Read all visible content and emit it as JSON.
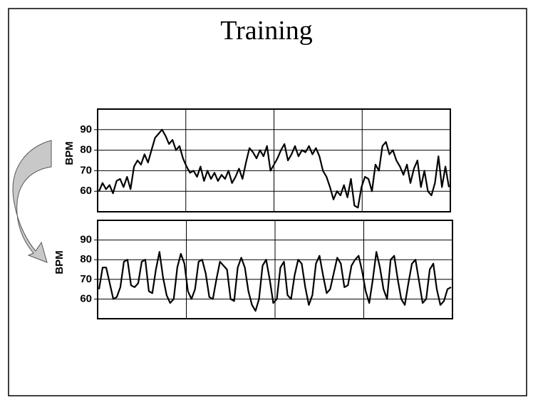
{
  "title": "Training",
  "chart_data": [
    {
      "type": "line",
      "ylabel": "BPM",
      "color": "#000000",
      "ylim": [
        50,
        100
      ],
      "yticks": [
        60,
        70,
        80,
        90
      ],
      "grid": true,
      "values": [
        60,
        64,
        61,
        63,
        59,
        65,
        66,
        62,
        67,
        61,
        72,
        75,
        73,
        78,
        74,
        80,
        86,
        88,
        90,
        87,
        83,
        85,
        80,
        82,
        76,
        72,
        69,
        70,
        67,
        72,
        65,
        70,
        66,
        69,
        65,
        68,
        66,
        70,
        64,
        67,
        71,
        66,
        74,
        81,
        79,
        76,
        80,
        77,
        82,
        70,
        73,
        76,
        80,
        83,
        75,
        78,
        82,
        77,
        80,
        79,
        82,
        78,
        81,
        77,
        70,
        67,
        62,
        56,
        60,
        58,
        63,
        57,
        66,
        53,
        52,
        62,
        67,
        66,
        60,
        73,
        70,
        82,
        84,
        78,
        80,
        75,
        72,
        68,
        73,
        64,
        71,
        75,
        62,
        70,
        60,
        58,
        64,
        77,
        62,
        72,
        62
      ]
    },
    {
      "type": "line",
      "ylabel": "BPM",
      "color": "#000000",
      "ylim": [
        50,
        100
      ],
      "yticks": [
        60,
        70,
        80,
        90
      ],
      "grid": true,
      "values": [
        65,
        76,
        76,
        68,
        60,
        61,
        66,
        79,
        80,
        67,
        66,
        68,
        79,
        80,
        64,
        63,
        75,
        84,
        71,
        62,
        58,
        60,
        76,
        83,
        78,
        64,
        60,
        65,
        79,
        80,
        73,
        61,
        60,
        70,
        79,
        77,
        75,
        60,
        59,
        76,
        81,
        76,
        64,
        57,
        54,
        60,
        77,
        80,
        70,
        58,
        60,
        76,
        79,
        62,
        60,
        72,
        80,
        78,
        66,
        57,
        62,
        78,
        82,
        72,
        63,
        65,
        73,
        81,
        78,
        66,
        67,
        77,
        80,
        82,
        74,
        64,
        58,
        70,
        84,
        76,
        65,
        60,
        80,
        82,
        70,
        60,
        57,
        68,
        78,
        80,
        69,
        58,
        60,
        75,
        78,
        65,
        57,
        59,
        65,
        66
      ]
    }
  ]
}
